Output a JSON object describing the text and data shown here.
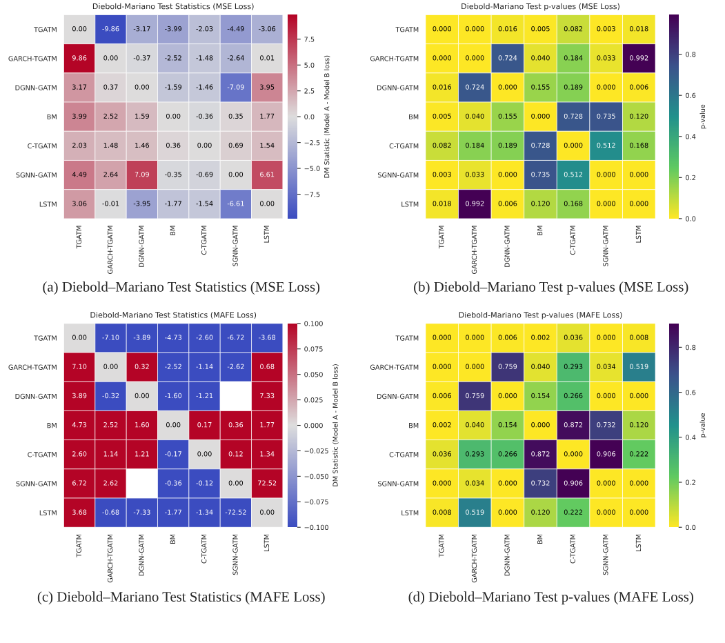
{
  "chart_data": [
    {
      "type": "heatmap",
      "title": "Diebold-Mariano Test Statistics (MSE Loss)",
      "clabel": "DM Statistic (Model A - Model B loss)",
      "categories": [
        "TGATM",
        "GARCH-TGATM",
        "DGNN-GATM",
        "BM",
        "C-TGATM",
        "SGNN-GATM",
        "LSTM"
      ],
      "y_categories": [
        "TGATM",
        "GARCH-TGATM",
        "DGNN-GATM",
        "BM",
        "C-TGATM",
        "SGNN-GATM",
        "LSTM"
      ],
      "cells": [
        [
          0.0,
          -9.86,
          -3.17,
          -3.99,
          -2.03,
          -4.49,
          -3.06
        ],
        [
          9.86,
          0.0,
          -0.37,
          -2.52,
          -1.48,
          -2.64,
          0.01
        ],
        [
          3.17,
          0.37,
          0.0,
          -1.59,
          -1.46,
          -7.09,
          3.95
        ],
        [
          3.99,
          2.52,
          1.59,
          0.0,
          -0.36,
          0.35,
          1.77
        ],
        [
          2.03,
          1.48,
          1.46,
          0.36,
          0.0,
          0.69,
          1.54
        ],
        [
          4.49,
          2.64,
          7.09,
          -0.35,
          -0.69,
          0.0,
          6.61
        ],
        [
          3.06,
          -0.01,
          -3.95,
          -1.77,
          -1.54,
          -6.61,
          0.0
        ]
      ],
      "cell_labels": [
        [
          "0.00",
          "-9.86",
          "-3.17",
          "-3.99",
          "-2.03",
          "-4.49",
          "-3.06"
        ],
        [
          "9.86",
          "0.00",
          "-0.37",
          "-2.52",
          "-1.48",
          "-2.64",
          "0.01"
        ],
        [
          "3.17",
          "0.37",
          "0.00",
          "-1.59",
          "-1.46",
          "-7.09",
          "3.95"
        ],
        [
          "3.99",
          "2.52",
          "1.59",
          "0.00",
          "-0.36",
          "0.35",
          "1.77"
        ],
        [
          "2.03",
          "1.48",
          "1.46",
          "0.36",
          "0.00",
          "0.69",
          "1.54"
        ],
        [
          "4.49",
          "2.64",
          "7.09",
          "-0.35",
          "-0.69",
          "0.00",
          "6.61"
        ],
        [
          "3.06",
          "-0.01",
          "-3.95",
          "-1.77",
          "-1.54",
          "-6.61",
          "0.00"
        ]
      ],
      "colors": [
        "#3b4cc0",
        "#dddddd",
        "#b40426"
      ],
      "clim": [
        -9.86,
        9.86
      ],
      "cticks": [
        {
          "value": -7.5,
          "label": "−7.5"
        },
        {
          "value": -5,
          "label": "−5.0"
        },
        {
          "value": -2.5,
          "label": "−2.5"
        },
        {
          "value": 0,
          "label": "0.0"
        },
        {
          "value": 2.5,
          "label": "2.5"
        },
        {
          "value": 5,
          "label": "5.0"
        },
        {
          "value": 7.5,
          "label": "7.5"
        }
      ],
      "annotations": [
        "(a) Diebold–Mariano Test Statistics (MSE Loss)"
      ]
    },
    {
      "type": "heatmap",
      "title": "Diebold-Mariano Test p-values (MSE Loss)",
      "clabel": "p-value",
      "categories": [
        "TGATM",
        "GARCH-TGATM",
        "DGNN-GATM",
        "BM",
        "C-TGATM",
        "SGNN-GATM",
        "LSTM"
      ],
      "y_categories": [
        "TGATM",
        "GARCH-TGATM",
        "DGNN-GATM",
        "BM",
        "C-TGATM",
        "SGNN-GATM",
        "LSTM"
      ],
      "cells": [
        [
          0.0,
          0.0,
          0.016,
          0.005,
          0.082,
          0.003,
          0.018
        ],
        [
          0.0,
          0.0,
          0.724,
          0.04,
          0.184,
          0.033,
          0.992
        ],
        [
          0.016,
          0.724,
          0.0,
          0.155,
          0.189,
          0.0,
          0.006
        ],
        [
          0.005,
          0.04,
          0.155,
          0.0,
          0.728,
          0.735,
          0.12
        ],
        [
          0.082,
          0.184,
          0.189,
          0.728,
          0.0,
          0.512,
          0.168
        ],
        [
          0.003,
          0.033,
          0.0,
          0.735,
          0.512,
          0.0,
          0.0
        ],
        [
          0.018,
          0.992,
          0.006,
          0.12,
          0.168,
          0.0,
          0.0
        ]
      ],
      "cell_labels": [
        [
          "0.000",
          "0.000",
          "0.016",
          "0.005",
          "0.082",
          "0.003",
          "0.018"
        ],
        [
          "0.000",
          "0.000",
          "0.724",
          "0.040",
          "0.184",
          "0.033",
          "0.992"
        ],
        [
          "0.016",
          "0.724",
          "0.000",
          "0.155",
          "0.189",
          "0.000",
          "0.006"
        ],
        [
          "0.005",
          "0.040",
          "0.155",
          "0.000",
          "0.728",
          "0.735",
          "0.120"
        ],
        [
          "0.082",
          "0.184",
          "0.189",
          "0.728",
          "0.000",
          "0.512",
          "0.168"
        ],
        [
          "0.003",
          "0.033",
          "0.000",
          "0.735",
          "0.512",
          "0.000",
          "0.000"
        ],
        [
          "0.018",
          "0.992",
          "0.006",
          "0.120",
          "0.168",
          "0.000",
          "0.000"
        ]
      ],
      "colors": [
        "#fde725",
        "#5ec962",
        "#21918c",
        "#3b528b",
        "#440154"
      ],
      "clim": [
        0,
        0.992
      ],
      "cticks": [
        {
          "value": 0,
          "label": "0.0"
        },
        {
          "value": 0.2,
          "label": "0.2"
        },
        {
          "value": 0.4,
          "label": "0.4"
        },
        {
          "value": 0.6,
          "label": "0.6"
        },
        {
          "value": 0.8,
          "label": "0.8"
        }
      ],
      "annotations": [
        "(b) Diebold–Mariano Test p-values (MSE Loss)"
      ]
    },
    {
      "type": "heatmap",
      "title": "Diebold-Mariano Test Statistics (MAFE Loss)",
      "clabel": "DM Statistic (Model A - Model B loss)",
      "categories": [
        "TGATM",
        "GARCH-TGATM",
        "DGNN-GATM",
        "BM",
        "C-TGATM",
        "SGNN-GATM",
        "LSTM"
      ],
      "y_categories": [
        "TGATM",
        "GARCH-TGATM",
        "DGNN-GATM",
        "BM",
        "C-TGATM",
        "SGNN-GATM",
        "LSTM"
      ],
      "cells": [
        [
          0.0,
          -7.1,
          -3.89,
          -4.73,
          -2.6,
          -6.72,
          -3.68
        ],
        [
          7.1,
          0.0,
          0.32,
          -2.52,
          -1.14,
          -2.62,
          0.68
        ],
        [
          3.89,
          -0.32,
          0.0,
          -1.6,
          -1.21,
          null,
          7.33
        ],
        [
          4.73,
          2.52,
          1.6,
          0.0,
          0.17,
          0.36,
          1.77
        ],
        [
          2.6,
          1.14,
          1.21,
          -0.17,
          0.0,
          0.12,
          1.34
        ],
        [
          6.72,
          2.62,
          null,
          -0.36,
          -0.12,
          0.0,
          72.52
        ],
        [
          3.68,
          -0.68,
          -7.33,
          -1.77,
          -1.34,
          -72.52,
          0.0
        ]
      ],
      "cell_labels": [
        [
          "0.00",
          "-7.10",
          "-3.89",
          "-4.73",
          "-2.60",
          "-6.72",
          "-3.68"
        ],
        [
          "7.10",
          "0.00",
          "0.32",
          "-2.52",
          "-1.14",
          "-2.62",
          "0.68"
        ],
        [
          "3.89",
          "-0.32",
          "0.00",
          "-1.60",
          "-1.21",
          null,
          "7.33"
        ],
        [
          "4.73",
          "2.52",
          "1.60",
          "0.00",
          "0.17",
          "0.36",
          "1.77"
        ],
        [
          "2.60",
          "1.14",
          "1.21",
          "-0.17",
          "0.00",
          "0.12",
          "1.34"
        ],
        [
          "6.72",
          "2.62",
          null,
          "-0.36",
          "-0.12",
          "0.00",
          "72.52"
        ],
        [
          "3.68",
          "-0.68",
          "-7.33",
          "-1.77",
          "-1.34",
          "-72.52",
          "0.00"
        ]
      ],
      "colors": [
        "#3b4cc0",
        "#dddddd",
        "#b40426"
      ],
      "clim": [
        -0.1,
        0.1
      ],
      "cticks": [
        {
          "value": -0.1,
          "label": "−0.100"
        },
        {
          "value": -0.075,
          "label": "−0.075"
        },
        {
          "value": -0.05,
          "label": "−0.050"
        },
        {
          "value": -0.025,
          "label": "−0.025"
        },
        {
          "value": 0,
          "label": "0.000"
        },
        {
          "value": 0.025,
          "label": "0.025"
        },
        {
          "value": 0.05,
          "label": "0.050"
        },
        {
          "value": 0.075,
          "label": "0.075"
        },
        {
          "value": 0.1,
          "label": "0.100"
        }
      ],
      "annotations": [
        "(c) Diebold–Mariano Test Statistics (MAFE Loss)"
      ]
    },
    {
      "type": "heatmap",
      "title": "Diebold-Mariano Test p-values (MAFE Loss)",
      "clabel": "p-value",
      "categories": [
        "TGATM",
        "GARCH-TGATM",
        "DGNN-GATM",
        "BM",
        "C-TGATM",
        "SGNN-GATM",
        "LSTM"
      ],
      "y_categories": [
        "TGATM",
        "GARCH-TGATM",
        "DGNN-GATM",
        "BM",
        "C-TGATM",
        "SGNN-GATM",
        "LSTM"
      ],
      "cells": [
        [
          0.0,
          0.0,
          0.006,
          0.002,
          0.036,
          0.0,
          0.008
        ],
        [
          0.0,
          0.0,
          0.759,
          0.04,
          0.293,
          0.034,
          0.519
        ],
        [
          0.006,
          0.759,
          0.0,
          0.154,
          0.266,
          0.0,
          0.0
        ],
        [
          0.002,
          0.04,
          0.154,
          0.0,
          0.872,
          0.732,
          0.12
        ],
        [
          0.036,
          0.293,
          0.266,
          0.872,
          0.0,
          0.906,
          0.222
        ],
        [
          0.0,
          0.034,
          0.0,
          0.732,
          0.906,
          0.0,
          0.0
        ],
        [
          0.008,
          0.519,
          0.0,
          0.12,
          0.222,
          0.0,
          0.0
        ]
      ],
      "cell_labels": [
        [
          "0.000",
          "0.000",
          "0.006",
          "0.002",
          "0.036",
          "0.000",
          "0.008"
        ],
        [
          "0.000",
          "0.000",
          "0.759",
          "0.040",
          "0.293",
          "0.034",
          "0.519"
        ],
        [
          "0.006",
          "0.759",
          "0.000",
          "0.154",
          "0.266",
          "0.000",
          "0.000"
        ],
        [
          "0.002",
          "0.040",
          "0.154",
          "0.000",
          "0.872",
          "0.732",
          "0.120"
        ],
        [
          "0.036",
          "0.293",
          "0.266",
          "0.872",
          "0.000",
          "0.906",
          "0.222"
        ],
        [
          "0.000",
          "0.034",
          "0.000",
          "0.732",
          "0.906",
          "0.000",
          "0.000"
        ],
        [
          "0.008",
          "0.519",
          "0.000",
          "0.120",
          "0.222",
          "0.000",
          "0.000"
        ]
      ],
      "colors": [
        "#fde725",
        "#5ec962",
        "#21918c",
        "#3b528b",
        "#440154"
      ],
      "clim": [
        0,
        0.906
      ],
      "cticks": [
        {
          "value": 0,
          "label": "0.0"
        },
        {
          "value": 0.2,
          "label": "0.2"
        },
        {
          "value": 0.4,
          "label": "0.4"
        },
        {
          "value": 0.6,
          "label": "0.6"
        },
        {
          "value": 0.8,
          "label": "0.8"
        }
      ],
      "annotations": [
        "(d) Diebold–Mariano Test p-values (MAFE Loss)"
      ]
    }
  ]
}
